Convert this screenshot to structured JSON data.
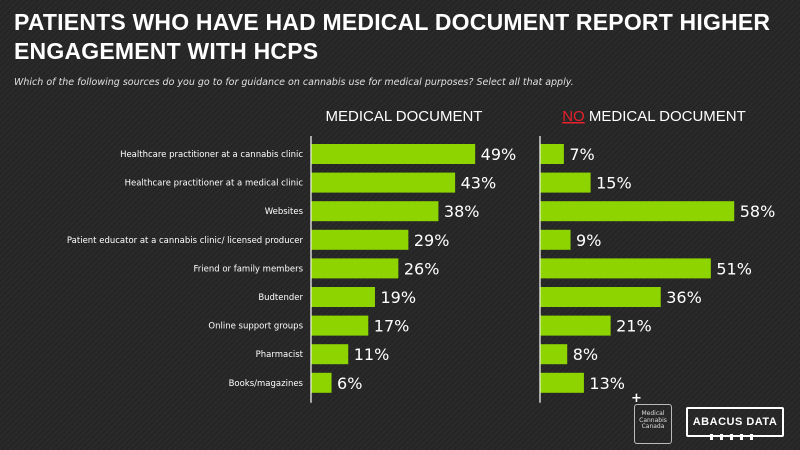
{
  "header": {
    "title": "PATIENTS WHO HAVE HAD MEDICAL DOCUMENT REPORT HIGHER ENGAGEMENT WITH HCPS",
    "subtitle": "Which of the following sources do you go to for guidance on cannabis use for medical purposes? Select all that apply."
  },
  "chart_data": {
    "type": "bar",
    "orientation": "horizontal",
    "categories": [
      "Healthcare practitioner at a cannabis clinic",
      "Healthcare practitioner at a medical clinic",
      "Websites",
      "Patient educator at a cannabis clinic/ licensed producer",
      "Friend or family members",
      "Budtender",
      "Online support groups",
      "Pharmacist",
      "Books/magazines"
    ],
    "series": [
      {
        "name": "MEDICAL DOCUMENT",
        "values": [
          49,
          43,
          38,
          29,
          26,
          19,
          17,
          11,
          6
        ]
      },
      {
        "name": "NO MEDICAL DOCUMENT",
        "name_highlight": "NO",
        "name_rest": " MEDICAL DOCUMENT",
        "values": [
          7,
          15,
          58,
          9,
          51,
          36,
          21,
          8,
          13
        ]
      }
    ],
    "value_suffix": "%",
    "bar_color": "#8ED400",
    "highlight_color": "#E8212B",
    "axis_color": "#ffffff",
    "xlim": [
      0,
      60
    ]
  },
  "logos": {
    "mcc_text": "Medical Cannabis Canada",
    "abacus_text": "ABACUS DATA"
  }
}
